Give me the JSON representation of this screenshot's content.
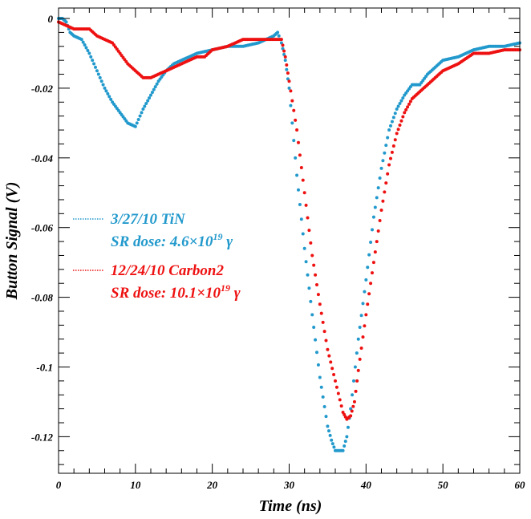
{
  "chart_data": {
    "type": "scatter",
    "title": "",
    "xlabel": "Time (ns)",
    "ylabel": "Button Signal (V)",
    "xlim": [
      0,
      60
    ],
    "ylim": [
      -0.1305,
      0.003
    ],
    "x_ticks": [
      "0",
      "10",
      "20",
      "30",
      "40",
      "50",
      "60"
    ],
    "y_ticks": [
      "0",
      "-0.02",
      "-0.04",
      "-0.06",
      "-0.08",
      "-0.1",
      "-0.12"
    ],
    "grid": false,
    "legend_position": "left-middle",
    "series": [
      {
        "name": "3/27/10 TiN",
        "legend_line2_prefix": "SR dose: 4.6×10",
        "legend_line2_exp": "19",
        "legend_line2_suffix": " γ",
        "color": "#2299cc",
        "points": [
          [
            0,
            0
          ],
          [
            0.5,
            0
          ],
          [
            1,
            -0.001
          ],
          [
            1.5,
            -0.004
          ],
          [
            2,
            -0.005
          ],
          [
            3,
            -0.006
          ],
          [
            4,
            -0.01
          ],
          [
            5,
            -0.015
          ],
          [
            6,
            -0.02
          ],
          [
            7,
            -0.024
          ],
          [
            8,
            -0.027
          ],
          [
            9,
            -0.03
          ],
          [
            10,
            -0.031
          ],
          [
            11,
            -0.026
          ],
          [
            12,
            -0.022
          ],
          [
            13,
            -0.018
          ],
          [
            14,
            -0.015
          ],
          [
            15,
            -0.013
          ],
          [
            16,
            -0.012
          ],
          [
            17,
            -0.011
          ],
          [
            18,
            -0.01
          ],
          [
            20,
            -0.009
          ],
          [
            22,
            -0.008
          ],
          [
            24,
            -0.008
          ],
          [
            26,
            -0.007
          ],
          [
            28,
            -0.005
          ],
          [
            28.5,
            -0.004
          ],
          [
            29,
            -0.007
          ],
          [
            29.5,
            -0.012
          ],
          [
            30,
            -0.02
          ],
          [
            31,
            -0.045
          ],
          [
            32,
            -0.066
          ],
          [
            33,
            -0.085
          ],
          [
            34,
            -0.103
          ],
          [
            35,
            -0.117
          ],
          [
            35.5,
            -0.121
          ],
          [
            36,
            -0.124
          ],
          [
            37,
            -0.124
          ],
          [
            37.5,
            -0.12
          ],
          [
            38,
            -0.112
          ],
          [
            39,
            -0.092
          ],
          [
            40,
            -0.075
          ],
          [
            41,
            -0.057
          ],
          [
            42,
            -0.043
          ],
          [
            43,
            -0.032
          ],
          [
            44,
            -0.026
          ],
          [
            45,
            -0.022
          ],
          [
            46,
            -0.019
          ],
          [
            47,
            -0.019
          ],
          [
            48,
            -0.016
          ],
          [
            49,
            -0.014
          ],
          [
            50,
            -0.012
          ],
          [
            52,
            -0.011
          ],
          [
            54,
            -0.009
          ],
          [
            56,
            -0.008
          ],
          [
            58,
            -0.008
          ],
          [
            60,
            -0.007
          ]
        ]
      },
      {
        "name": "12/24/10 Carbon2",
        "legend_line2_prefix": "SR dose: 10.1×10",
        "legend_line2_exp": "19",
        "legend_line2_suffix": " γ",
        "color": "#ee1111",
        "points": [
          [
            0,
            -0.001
          ],
          [
            2,
            -0.003
          ],
          [
            4,
            -0.003
          ],
          [
            5,
            -0.005
          ],
          [
            7,
            -0.007
          ],
          [
            8,
            -0.01
          ],
          [
            9,
            -0.013
          ],
          [
            10,
            -0.015
          ],
          [
            11,
            -0.017
          ],
          [
            12,
            -0.017
          ],
          [
            13,
            -0.016
          ],
          [
            14,
            -0.015
          ],
          [
            15,
            -0.014
          ],
          [
            16,
            -0.013
          ],
          [
            17,
            -0.012
          ],
          [
            18,
            -0.011
          ],
          [
            19,
            -0.011
          ],
          [
            20,
            -0.009
          ],
          [
            22,
            -0.008
          ],
          [
            24,
            -0.006
          ],
          [
            26,
            -0.006
          ],
          [
            28,
            -0.006
          ],
          [
            29,
            -0.006
          ],
          [
            29.5,
            -0.011
          ],
          [
            30,
            -0.018
          ],
          [
            31,
            -0.032
          ],
          [
            32,
            -0.05
          ],
          [
            33,
            -0.068
          ],
          [
            34,
            -0.082
          ],
          [
            35,
            -0.095
          ],
          [
            36,
            -0.104
          ],
          [
            37,
            -0.113
          ],
          [
            37.5,
            -0.115
          ],
          [
            38,
            -0.114
          ],
          [
            38.5,
            -0.11
          ],
          [
            39,
            -0.101
          ],
          [
            40,
            -0.085
          ],
          [
            41,
            -0.07
          ],
          [
            42,
            -0.055
          ],
          [
            43,
            -0.042
          ],
          [
            44,
            -0.033
          ],
          [
            45,
            -0.027
          ],
          [
            46,
            -0.023
          ],
          [
            47,
            -0.021
          ],
          [
            48,
            -0.019
          ],
          [
            49,
            -0.017
          ],
          [
            50,
            -0.015
          ],
          [
            52,
            -0.013
          ],
          [
            54,
            -0.01
          ],
          [
            56,
            -0.01
          ],
          [
            58,
            -0.009
          ],
          [
            60,
            -0.009
          ]
        ]
      }
    ]
  }
}
